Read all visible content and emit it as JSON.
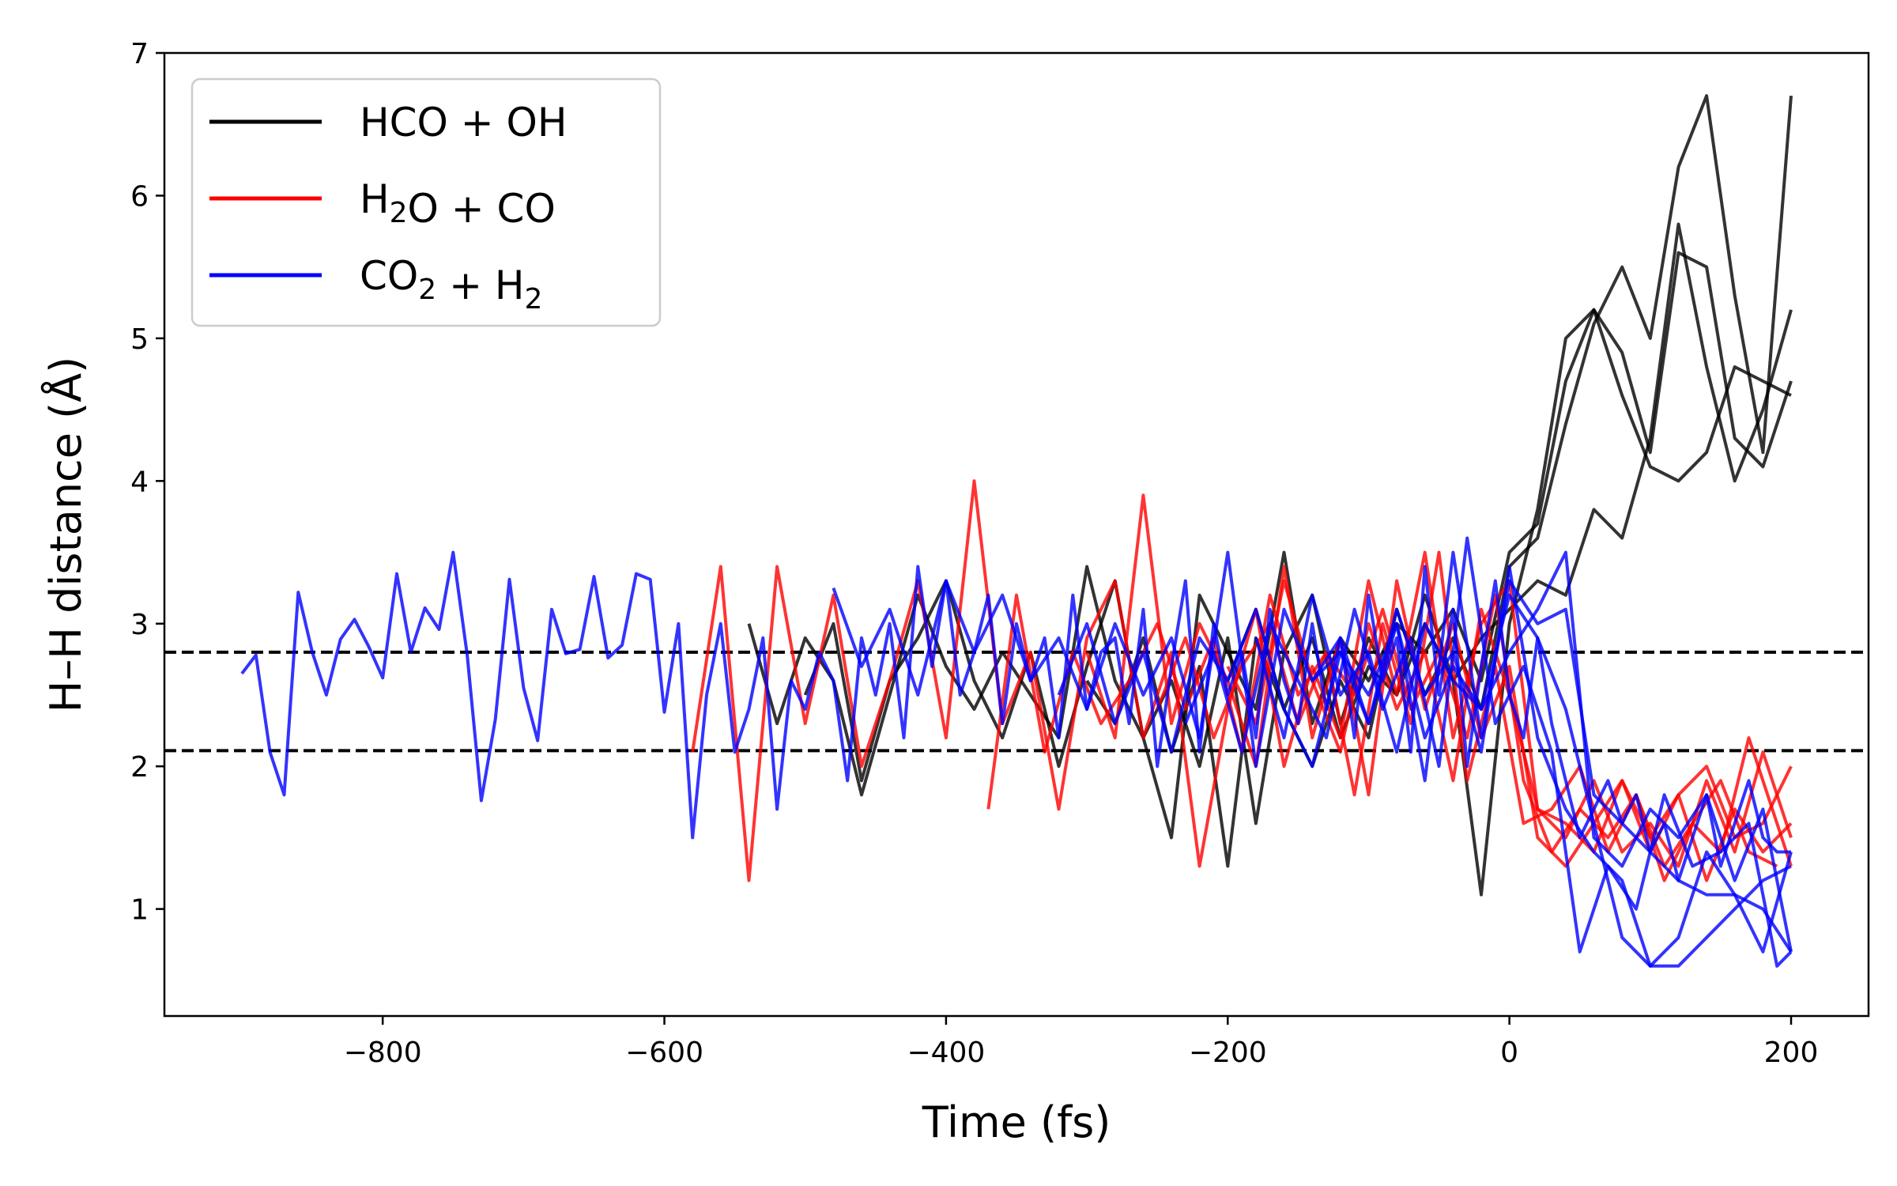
{
  "chart_data": {
    "type": "line",
    "xlabel": "Time (fs)",
    "ylabel": "H–H distance (Å)",
    "xlim": [
      -955,
      255
    ],
    "ylim": [
      0.25,
      7.0
    ],
    "xticks": [
      -800,
      -600,
      -400,
      -200,
      0,
      200
    ],
    "xtick_labels": [
      "−800",
      "−600",
      "−400",
      "−200",
      "0",
      "200"
    ],
    "yticks": [
      1,
      2,
      3,
      4,
      5,
      6,
      7
    ],
    "ytick_labels": [
      "1",
      "2",
      "3",
      "4",
      "5",
      "6",
      "7"
    ],
    "hlines": [
      2.8,
      2.11
    ],
    "legend": {
      "placement": "upper-left",
      "entries": [
        {
          "label": "HCO + OH",
          "parts": [
            {
              "t": "HCO + OH"
            }
          ],
          "color": "#000000"
        },
        {
          "label": "H2O + CO",
          "parts": [
            {
              "t": "H"
            },
            {
              "t": "2",
              "sub": true
            },
            {
              "t": "O + CO"
            }
          ],
          "color": "#ff0000"
        },
        {
          "label": "CO2 + H2",
          "parts": [
            {
              "t": "CO"
            },
            {
              "t": "2",
              "sub": true
            },
            {
              "t": " + H"
            },
            {
              "t": "2",
              "sub": true
            }
          ],
          "color": "#0000ff"
        }
      ]
    },
    "series": [
      {
        "name": "HCO + OH",
        "color": "#000000",
        "x": [
          -540,
          -520,
          -500,
          -480,
          -460,
          -440,
          -420,
          -400,
          -380,
          -360,
          -340,
          -320,
          -300,
          -280,
          -260,
          -240,
          -220,
          -200,
          -180,
          -160,
          -140,
          -120,
          -100,
          -80,
          -60,
          -40,
          -20,
          0,
          20,
          40,
          60,
          80,
          100,
          120,
          140,
          160,
          180,
          200
        ],
        "y": [
          3.0,
          2.3,
          2.9,
          2.6,
          1.8,
          2.5,
          3.2,
          2.7,
          2.4,
          2.8,
          2.5,
          2.2,
          3.4,
          2.6,
          2.2,
          1.5,
          3.2,
          2.8,
          2.4,
          3.5,
          2.3,
          2.9,
          2.6,
          3.0,
          2.8,
          3.1,
          2.6,
          3.5,
          3.7,
          4.7,
          5.2,
          4.9,
          4.2,
          5.6,
          5.5,
          4.3,
          4.1,
          4.7
        ]
      },
      {
        "name": "HCO + OH",
        "color": "#000000",
        "x": [
          -500,
          -480,
          -460,
          -440,
          -420,
          -400,
          -380,
          -360,
          -340,
          -320,
          -300,
          -280,
          -260,
          -240,
          -220,
          -200,
          -180,
          -160,
          -140,
          -120,
          -100,
          -80,
          -60,
          -40,
          -20,
          0,
          20,
          40,
          60,
          80,
          100,
          120,
          140,
          160,
          180,
          200
        ],
        "y": [
          2.5,
          3.0,
          1.9,
          2.6,
          2.9,
          3.3,
          2.6,
          2.2,
          2.8,
          2.0,
          2.7,
          3.3,
          2.2,
          2.6,
          2.0,
          2.9,
          1.6,
          2.8,
          3.2,
          2.3,
          2.9,
          2.5,
          3.2,
          2.6,
          1.1,
          3.0,
          3.8,
          5.0,
          5.2,
          4.6,
          4.1,
          4.0,
          4.2,
          4.8,
          4.7,
          4.6
        ]
      },
      {
        "name": "HCO + OH",
        "color": "#000000",
        "x": [
          -300,
          -280,
          -260,
          -240,
          -220,
          -200,
          -180,
          -160,
          -140,
          -120,
          -100,
          -80,
          -60,
          -40,
          -20,
          0,
          20,
          40,
          60,
          80,
          100,
          120,
          140,
          160,
          180,
          200
        ],
        "y": [
          2.6,
          2.3,
          2.9,
          2.1,
          2.7,
          1.3,
          2.9,
          2.4,
          2.0,
          2.6,
          2.2,
          3.1,
          2.5,
          2.9,
          2.4,
          3.4,
          3.6,
          4.4,
          5.1,
          5.5,
          5.0,
          6.2,
          6.7,
          5.3,
          4.2,
          6.7
        ]
      },
      {
        "name": "HCO + OH",
        "color": "#000000",
        "x": [
          -200,
          -180,
          -160,
          -140,
          -120,
          -100,
          -80,
          -60,
          -40,
          -20,
          0,
          20,
          40,
          60,
          80,
          100,
          120,
          140,
          160,
          180,
          200
        ],
        "y": [
          2.6,
          3.1,
          2.4,
          2.9,
          2.2,
          2.7,
          2.5,
          3.0,
          2.6,
          2.9,
          3.1,
          3.3,
          3.2,
          3.8,
          3.6,
          4.3,
          5.8,
          4.8,
          4.0,
          4.5,
          5.2
        ]
      },
      {
        "name": "H2O + CO",
        "color": "#ff0000",
        "x": [
          -580,
          -560,
          -540,
          -520,
          -500,
          -480,
          -460,
          -440,
          -420,
          -400,
          -380,
          -360,
          -340,
          -320,
          -300,
          -280,
          -260,
          -240,
          -220,
          -200,
          -180,
          -160,
          -140,
          -120,
          -100,
          -80,
          -60,
          -40,
          -20,
          0,
          20,
          40,
          60,
          80,
          100,
          120,
          140,
          160,
          180,
          200
        ],
        "y": [
          2.1,
          3.4,
          1.2,
          3.4,
          2.3,
          3.2,
          2.0,
          2.6,
          3.3,
          2.2,
          4.0,
          2.3,
          2.8,
          1.7,
          2.9,
          3.3,
          2.2,
          2.8,
          1.3,
          2.4,
          3.1,
          2.0,
          2.7,
          2.2,
          3.3,
          2.5,
          3.5,
          2.2,
          3.0,
          3.3,
          1.7,
          1.5,
          1.9,
          1.4,
          1.6,
          1.3,
          1.9,
          1.4,
          2.1,
          1.5
        ]
      },
      {
        "name": "H2O + CO",
        "color": "#ff0000",
        "x": [
          -370,
          -350,
          -330,
          -310,
          -290,
          -270,
          -250,
          -230,
          -210,
          -190,
          -170,
          -150,
          -130,
          -110,
          -90,
          -70,
          -50,
          -30,
          -10,
          10,
          30,
          50,
          70,
          90,
          110,
          130,
          150,
          170,
          190
        ],
        "y": [
          1.7,
          3.2,
          2.1,
          2.8,
          2.3,
          2.6,
          3.0,
          2.4,
          2.9,
          2.1,
          3.2,
          2.5,
          2.8,
          1.8,
          3.0,
          2.3,
          3.5,
          1.9,
          2.7,
          1.6,
          1.7,
          2.0,
          1.4,
          1.8,
          1.2,
          1.6,
          1.9,
          1.4,
          1.3
        ]
      },
      {
        "name": "H2O + CO",
        "color": "#ff0000",
        "x": [
          -300,
          -280,
          -260,
          -240,
          -220,
          -200,
          -180,
          -160,
          -140,
          -120,
          -100,
          -80,
          -60,
          -40,
          -20,
          0,
          20,
          40,
          60,
          80,
          100,
          120,
          140,
          160,
          180,
          200
        ],
        "y": [
          2.8,
          2.2,
          3.9,
          2.3,
          3.0,
          2.6,
          2.0,
          3.4,
          2.2,
          2.9,
          1.8,
          3.3,
          2.4,
          3.0,
          2.2,
          2.7,
          1.5,
          1.3,
          1.6,
          1.9,
          1.4,
          1.8,
          2.0,
          1.5,
          1.6,
          2.0
        ]
      },
      {
        "name": "H2O + CO",
        "color": "#ff0000",
        "x": [
          -250,
          -230,
          -210,
          -190,
          -170,
          -150,
          -130,
          -110,
          -90,
          -70,
          -50,
          -30,
          -10,
          10,
          30,
          50,
          70,
          90,
          110,
          130,
          150,
          170,
          190,
          200
        ],
        "y": [
          2.4,
          2.9,
          2.2,
          2.7,
          3.0,
          2.3,
          2.8,
          2.5,
          3.1,
          2.4,
          2.8,
          2.2,
          3.2,
          1.9,
          1.4,
          1.7,
          1.5,
          1.8,
          1.3,
          1.6,
          1.4,
          2.2,
          1.6,
          1.3
        ]
      },
      {
        "name": "H2O + CO",
        "color": "#ff0000",
        "x": [
          -200,
          -180,
          -160,
          -140,
          -120,
          -100,
          -80,
          -60,
          -40,
          -20,
          0,
          20,
          40,
          60,
          80,
          100,
          120,
          140,
          160,
          180,
          200
        ],
        "y": [
          2.7,
          2.3,
          3.3,
          2.6,
          2.1,
          3.0,
          2.4,
          2.8,
          1.9,
          3.1,
          2.5,
          1.7,
          1.6,
          1.4,
          1.9,
          1.5,
          1.8,
          1.2,
          1.7,
          1.4,
          1.6
        ]
      },
      {
        "name": "CO2 + H2",
        "color": "#0000ff",
        "x": [
          -900,
          -890,
          -880,
          -870,
          -860,
          -850,
          -840,
          -830,
          -820,
          -810,
          -800,
          -790,
          -780,
          -770,
          -760,
          -750,
          -740,
          -730,
          -720,
          -710,
          -700,
          -690,
          -680,
          -670,
          -660,
          -650,
          -640,
          -630,
          -620,
          -610,
          -600,
          -590,
          -580,
          -570,
          -560,
          -550,
          -540,
          -530,
          -520,
          -510,
          -500,
          -490,
          -480,
          -470,
          -460,
          -450,
          -440,
          -430,
          -420,
          -410,
          -400,
          -390,
          -380,
          -370,
          -360,
          -350,
          -340,
          -330,
          -320,
          -310,
          -300,
          -290,
          -280,
          -270,
          -260,
          -250,
          -240,
          -230,
          -220,
          -210,
          -200,
          -190,
          -180,
          -170,
          -160,
          -150,
          -140,
          -130,
          -120,
          -110,
          -100,
          -90,
          -80,
          -70,
          -60,
          -50,
          -40,
          -30,
          -20,
          -10,
          0,
          10,
          20,
          30,
          40,
          50,
          60,
          70,
          80,
          90,
          100,
          110,
          120,
          130,
          140,
          150,
          160,
          170,
          180,
          190,
          200
        ],
        "y": [
          2.65,
          2.78,
          2.1,
          1.8,
          3.22,
          2.8,
          2.5,
          2.89,
          3.03,
          2.84,
          2.62,
          3.35,
          2.8,
          3.11,
          2.96,
          3.5,
          2.78,
          1.76,
          2.33,
          3.31,
          2.55,
          2.18,
          3.1,
          2.79,
          2.82,
          3.33,
          2.76,
          2.85,
          3.35,
          3.31,
          2.38,
          3.0,
          1.5,
          2.5,
          3.0,
          2.1,
          2.4,
          2.9,
          1.7,
          2.6,
          2.4,
          2.8,
          2.6,
          1.9,
          2.9,
          2.5,
          3.0,
          2.2,
          3.4,
          2.7,
          3.3,
          2.5,
          2.8,
          3.2,
          2.3,
          3.0,
          2.6,
          2.9,
          2.2,
          3.2,
          2.4,
          2.8,
          2.9,
          2.3,
          3.1,
          2.0,
          2.7,
          3.3,
          2.1,
          3.0,
          2.5,
          2.8,
          2.2,
          3.1,
          2.6,
          2.3,
          3.0,
          2.4,
          2.9,
          2.2,
          3.2,
          2.6,
          2.9,
          2.1,
          3.4,
          2.5,
          3.1,
          2.0,
          2.7,
          3.3,
          2.5,
          2.2,
          2.9,
          2.3,
          1.9,
          1.5,
          1.7,
          1.9,
          1.6,
          1.8,
          1.4,
          1.6,
          1.2,
          1.5,
          1.8,
          1.3,
          1.6,
          1.9,
          1.5,
          1.4,
          1.4
        ]
      },
      {
        "name": "CO2 + H2",
        "color": "#0000ff",
        "x": [
          -480,
          -460,
          -440,
          -420,
          -400,
          -380,
          -360,
          -340,
          -320,
          -300,
          -280,
          -260,
          -240,
          -220,
          -200,
          -180,
          -160,
          -140,
          -120,
          -100,
          -80,
          -60,
          -40,
          -20,
          0,
          20,
          40,
          60,
          80,
          100,
          120,
          140,
          160,
          180,
          200
        ],
        "y": [
          3.25,
          2.7,
          3.1,
          2.5,
          3.3,
          2.8,
          3.2,
          2.6,
          2.9,
          2.4,
          3.0,
          2.5,
          2.9,
          2.2,
          3.5,
          2.0,
          3.1,
          2.6,
          2.8,
          2.3,
          3.0,
          1.9,
          3.5,
          2.2,
          3.3,
          3.0,
          3.1,
          1.8,
          1.6,
          1.4,
          1.2,
          1.1,
          1.1,
          1.0,
          0.7
        ]
      },
      {
        "name": "CO2 + H2",
        "color": "#0000ff",
        "x": [
          -320,
          -300,
          -280,
          -260,
          -240,
          -220,
          -200,
          -180,
          -160,
          -140,
          -120,
          -100,
          -80,
          -60,
          -40,
          -20,
          0,
          20,
          40,
          60,
          80,
          100,
          120,
          140,
          160,
          180,
          200
        ],
        "y": [
          2.5,
          3.0,
          2.3,
          2.8,
          2.1,
          2.9,
          2.6,
          3.1,
          2.4,
          2.0,
          2.8,
          2.5,
          3.0,
          2.2,
          2.7,
          2.4,
          2.8,
          3.1,
          3.5,
          1.5,
          1.3,
          1.7,
          1.5,
          1.8,
          1.2,
          1.7,
          0.7
        ]
      },
      {
        "name": "CO2 + H2",
        "color": "#0000ff",
        "x": [
          -230,
          -210,
          -190,
          -170,
          -150,
          -130,
          -110,
          -90,
          -70,
          -50,
          -30,
          -10,
          10,
          30,
          50,
          70,
          90,
          110,
          130,
          150,
          170,
          190,
          200
        ],
        "y": [
          2.3,
          2.8,
          2.1,
          3.0,
          2.6,
          2.2,
          3.1,
          2.4,
          2.9,
          2.0,
          3.6,
          2.3,
          2.7,
          2.1,
          0.7,
          1.3,
          1.0,
          1.8,
          1.3,
          1.4,
          1.6,
          0.6,
          0.7
        ]
      },
      {
        "name": "CO2 + H2",
        "color": "#0000ff",
        "x": [
          -180,
          -160,
          -140,
          -120,
          -100,
          -80,
          -60,
          -40,
          -20,
          0,
          20,
          40,
          60,
          80,
          100,
          120,
          140,
          160,
          180,
          200
        ],
        "y": [
          2.9,
          2.2,
          3.2,
          2.5,
          2.8,
          2.1,
          3.0,
          2.6,
          2.4,
          3.2,
          2.9,
          2.4,
          1.6,
          0.8,
          0.6,
          0.8,
          1.4,
          1.1,
          0.7,
          1.4
        ]
      },
      {
        "name": "CO2 + H2",
        "color": "#0000ff",
        "x": [
          -140,
          -120,
          -100,
          -80,
          -60,
          -40,
          -20,
          0,
          20,
          40,
          60,
          80,
          100,
          120,
          140,
          160,
          180,
          200
        ],
        "y": [
          2.6,
          2.9,
          2.3,
          3.1,
          2.5,
          2.8,
          2.1,
          3.4,
          2.2,
          1.7,
          1.4,
          1.2,
          0.6,
          0.6,
          0.8,
          1.0,
          1.2,
          1.3
        ]
      }
    ]
  }
}
